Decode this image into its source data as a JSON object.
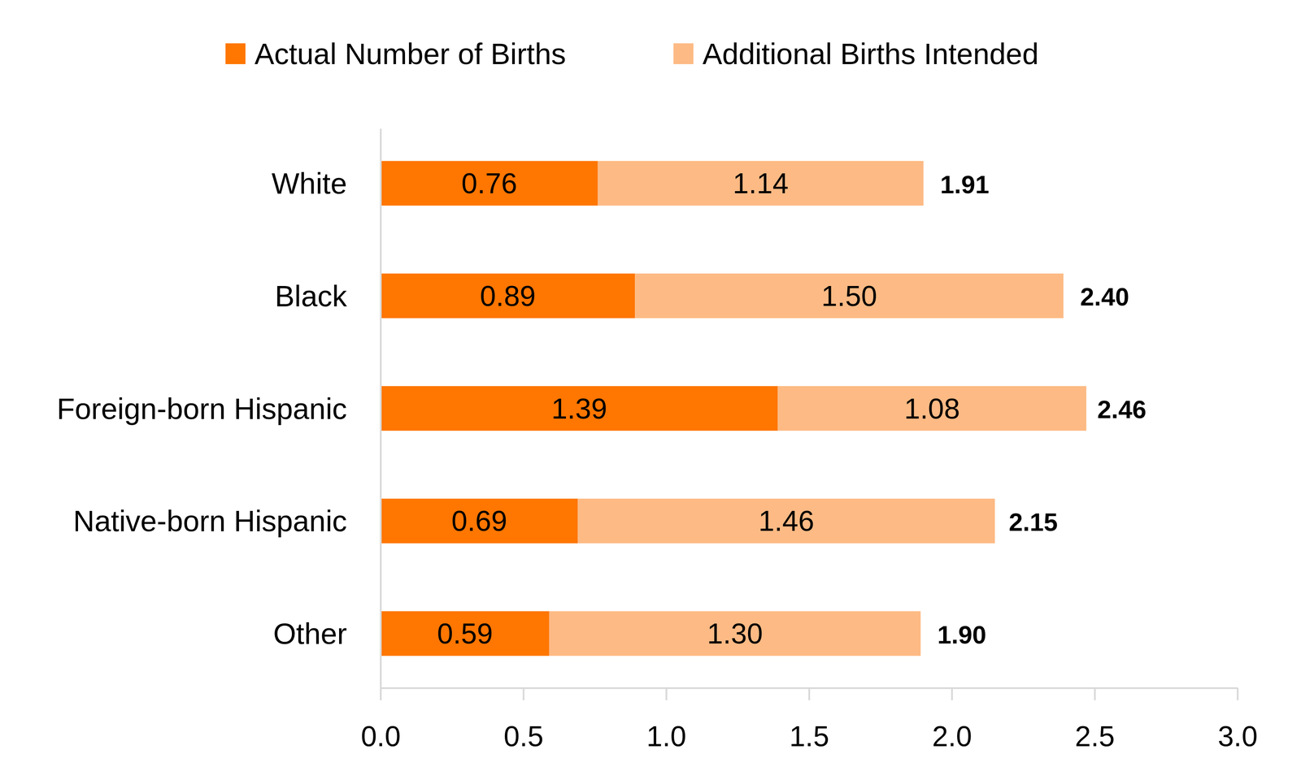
{
  "chart_data": {
    "type": "bar",
    "orientation": "horizontal",
    "stacked": true,
    "data_labels": true,
    "legend": "top",
    "grid": false,
    "categories": [
      "White",
      "Black",
      "Foreign-born Hispanic",
      "Native-born Hispanic",
      "Other"
    ],
    "series": [
      {
        "name": "Actual Number of Births",
        "color": "#ff7600",
        "values": [
          0.76,
          0.89,
          1.39,
          0.69,
          0.59
        ]
      },
      {
        "name": "Additional Births Intended",
        "color": "#fdba84",
        "values": [
          1.14,
          1.5,
          1.08,
          1.46,
          1.3
        ],
        "value_labels": [
          "1.14",
          "1.50",
          "1.08",
          "1.46",
          "1.30"
        ]
      }
    ],
    "totals": [
      1.91,
      2.4,
      2.46,
      2.15,
      1.9
    ],
    "total_labels": [
      "1.91",
      "2.40",
      "2.46",
      "2.15",
      "1.90"
    ],
    "xlim": [
      0,
      3
    ],
    "xticks": [
      {
        "value": 0,
        "label": "0.0"
      },
      {
        "value": 0.5,
        "label": "0.5"
      },
      {
        "value": 1,
        "label": "1.0"
      },
      {
        "value": 1.5,
        "label": "1.5"
      },
      {
        "value": 2,
        "label": "2.0"
      },
      {
        "value": 2.5,
        "label": "2.5"
      },
      {
        "value": 3,
        "label": "3.0"
      }
    ]
  }
}
